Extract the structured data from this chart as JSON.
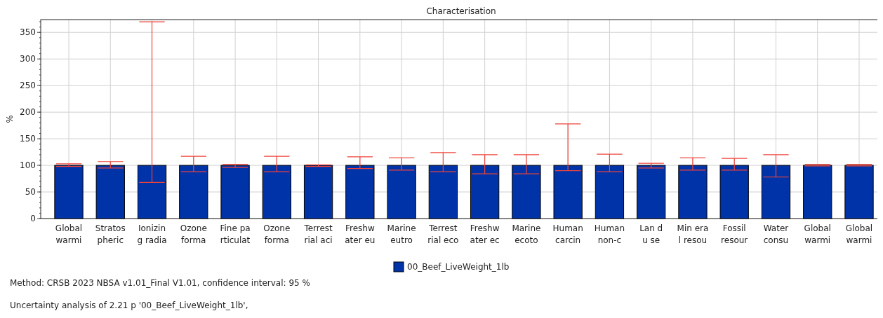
{
  "chart_data": {
    "type": "bar",
    "title": "Characterisation",
    "ylabel": "%",
    "categories": [
      "Global\nwarmi",
      "Stratos\npheric",
      "Ionizin\ng radia",
      "Ozone\nforma",
      "Fine pa\nrticulat",
      "Ozone\nforma",
      "Terrest\nrial aci",
      "Freshw\nater eu",
      "Marine\neutro",
      "Terrest\nrial eco",
      "Freshw\nater ec",
      "Marine\necoto",
      "Human\ncarcin",
      "Human\nnon-c",
      "Lan d\nu se",
      "Min era\nl resou",
      "Fossil\nresour",
      "Water\nconsu",
      "Global\nwarmi",
      "Global\nwarmi"
    ],
    "series": [
      {
        "name": "00_Beef_LiveWeight_1lb",
        "color": "#0033a8",
        "values": [
          100,
          100,
          100,
          100,
          100,
          100,
          100,
          100,
          100,
          100,
          100,
          100,
          100,
          100,
          100,
          100,
          100,
          100,
          100,
          100
        ],
        "errors": [
          [
            98,
            103
          ],
          [
            95,
            107
          ],
          [
            68,
            370
          ],
          [
            88,
            117
          ],
          [
            96,
            102
          ],
          [
            88,
            117
          ],
          [
            98,
            101
          ],
          [
            94,
            116
          ],
          [
            91,
            114
          ],
          [
            88,
            124
          ],
          [
            84,
            120
          ],
          [
            84,
            120
          ],
          [
            90,
            178
          ],
          [
            88,
            121
          ],
          [
            95,
            104
          ],
          [
            91,
            114
          ],
          [
            91,
            113
          ],
          [
            78,
            120
          ],
          [
            99,
            102
          ],
          [
            99,
            102
          ]
        ]
      }
    ],
    "ylim": [
      0,
      374
    ],
    "yticks": [
      0,
      50,
      100,
      150,
      200,
      250,
      300,
      350
    ],
    "grid": true,
    "legend": "bottom",
    "annotations": [
      "Method: CRSB 2023 NBSA v1.01_Final V1.01, confidence interval: 95 %",
      "Uncertainty analysis of 2.21 p '00_Beef_LiveWeight_1lb',"
    ]
  }
}
